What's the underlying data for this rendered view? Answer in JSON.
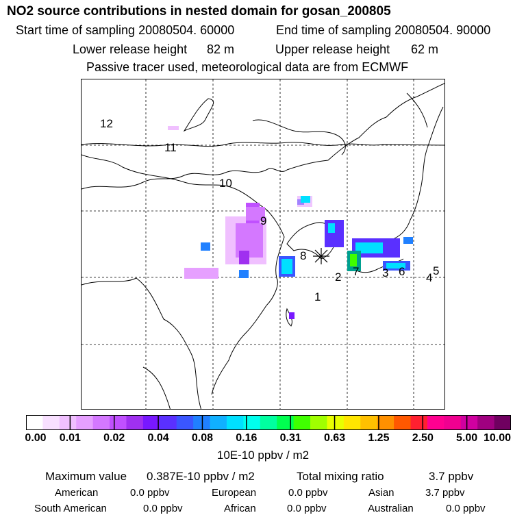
{
  "header": {
    "title": "NO2 source contributions in nested domain for gosan_200805",
    "start_label": "Start time of sampling 20080504. 60000",
    "end_label": "End time of sampling 20080504. 90000",
    "lower_label": "Lower release height",
    "lower_value": "82 m",
    "upper_label": "Upper release height",
    "upper_value": "62 m",
    "tracer_note": "Passive tracer used, meteorological data are from ECMWF"
  },
  "map": {
    "receptor_label": "8",
    "region_labels": [
      "1",
      "2",
      "3",
      "4",
      "5",
      "6",
      "7",
      "9",
      "10",
      "11",
      "12"
    ],
    "palette": [
      "#ffffff",
      "#f8e0ff",
      "#f0c0ff",
      "#e6a0ff",
      "#d478ff",
      "#c050ff",
      "#a030f0",
      "#7818ff",
      "#5a30ff",
      "#3a56ff",
      "#2080ff",
      "#10b0ff",
      "#00e0ff",
      "#00ffee",
      "#00ffa0",
      "#00ff50",
      "#40ff00",
      "#a0ff00",
      "#e8ff00",
      "#ffe600",
      "#ffc000",
      "#ff9000",
      "#ff5800",
      "#ff2030",
      "#ff0090",
      "#f00090",
      "#d000a0",
      "#a00080",
      "#700060"
    ]
  },
  "colorbar": {
    "ticks": [
      "0.00",
      "0.01",
      "0.02",
      "0.04",
      "0.08",
      "0.16",
      "0.31",
      "0.63",
      "1.25",
      "2.50",
      "5.00",
      "10.00"
    ],
    "units": "10E-10 ppbv / m2"
  },
  "stats": {
    "max_label": "Maximum value",
    "max_value": "0.387E-10 ppbv / m2",
    "total_label": "Total mixing ratio",
    "total_value": "3.7 ppbv",
    "regions": [
      {
        "name": "American",
        "value": "0.0 ppbv"
      },
      {
        "name": "European",
        "value": "0.0 ppbv"
      },
      {
        "name": "Asian",
        "value": "3.7 ppbv"
      },
      {
        "name": "South American",
        "value": "0.0 ppbv"
      },
      {
        "name": "African",
        "value": "0.0 ppbv"
      },
      {
        "name": "Australian",
        "value": "0.0 ppbv"
      }
    ]
  }
}
